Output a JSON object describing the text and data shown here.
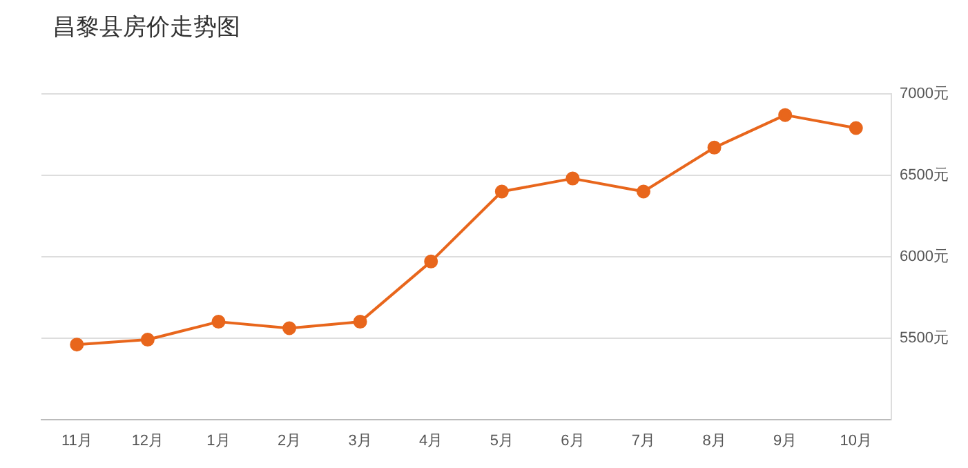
{
  "chart_data": {
    "type": "line",
    "title": "昌黎县房价走势图",
    "categories": [
      "11月",
      "12月",
      "1月",
      "2月",
      "3月",
      "4月",
      "5月",
      "6月",
      "7月",
      "8月",
      "9月",
      "10月"
    ],
    "series": [
      {
        "color": "#e8661c",
        "values": [
          5460,
          5490,
          5600,
          5560,
          5600,
          5970,
          6400,
          6480,
          6400,
          6670,
          6870,
          6790
        ]
      }
    ],
    "ylim": [
      5000,
      7000
    ],
    "yticks": [
      {
        "value": 5500,
        "label": "5500元"
      },
      {
        "value": 6000,
        "label": "6000元"
      },
      {
        "value": 6500,
        "label": "6500元"
      },
      {
        "value": 7000,
        "label": "7000元"
      }
    ],
    "grid": "y",
    "legend": false,
    "marker": "circle",
    "line_style": "solid"
  }
}
